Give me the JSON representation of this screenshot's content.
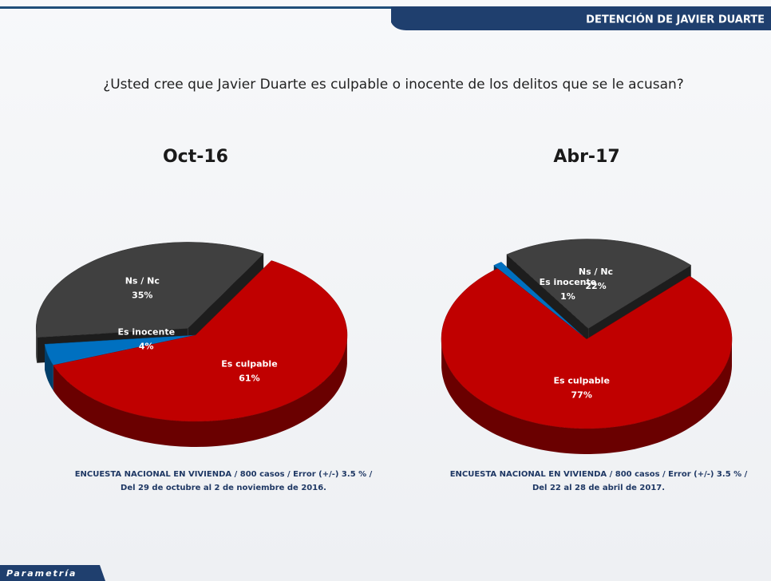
{
  "header": {
    "title": "DETENCIÓN DE JAVIER DUARTE"
  },
  "question": "¿Usted cree que Javier Duarte es culpable o inocente de los delitos que se le acusan?",
  "brand": "Parametría",
  "chart_data": [
    {
      "type": "pie",
      "title": "Oct-16",
      "categories": [
        "Ns / Nc",
        "Es inocente",
        "Es culpable"
      ],
      "values": [
        35,
        4,
        61
      ],
      "value_labels": [
        "35%",
        "4%",
        "61%"
      ],
      "colors": [
        "#404040",
        "#0070c0",
        "#c00000"
      ],
      "note": "ENCUESTA NACIONAL EN VIVIENDA / 800 casos / Error (+/-) 3.5 % / Del 29 de octubre al 2 de noviembre de 2016."
    },
    {
      "type": "pie",
      "title": "Abr-17",
      "categories": [
        "Ns / Nc",
        "Es inocente",
        "Es culpable"
      ],
      "values": [
        22,
        1,
        77
      ],
      "value_labels": [
        "22%",
        "1%",
        "77%"
      ],
      "colors": [
        "#404040",
        "#0070c0",
        "#c00000"
      ],
      "note": "ENCUESTA NACIONAL EN VIVIENDA / 800 casos / Error (+/-) 3.5 % / Del 22 al 28 de abril de 2017."
    }
  ]
}
